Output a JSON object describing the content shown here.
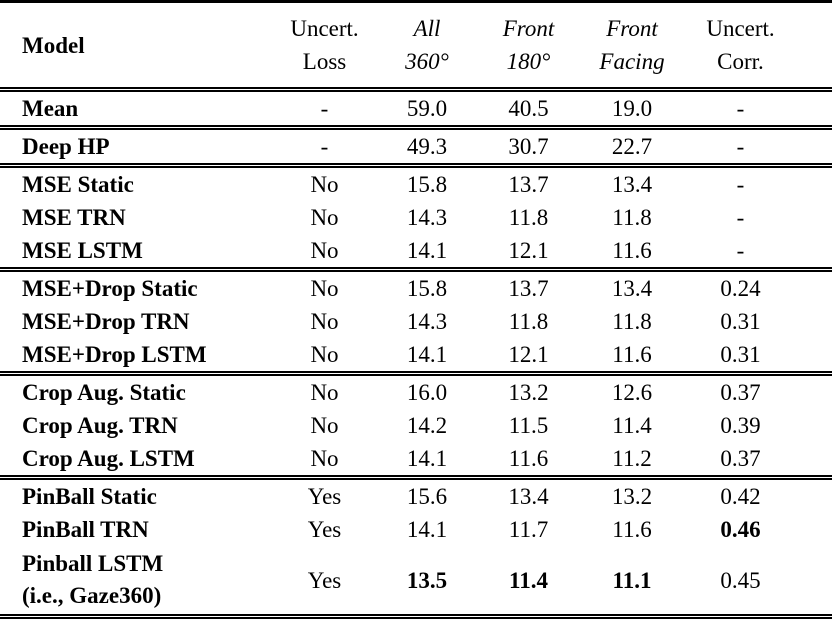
{
  "page": {
    "background_color": "#ffffff",
    "text_color": "#000000",
    "description": "Academic paper results table comparing gaze estimation models"
  },
  "table": {
    "columns": [
      {
        "id": "model",
        "lines": [
          "Model"
        ],
        "style": "bold",
        "align": "left"
      },
      {
        "id": "uncert-loss",
        "lines": [
          "Uncert.",
          "Loss"
        ],
        "style": "roman",
        "align": "center"
      },
      {
        "id": "all-360",
        "lines": [
          "All",
          "360°"
        ],
        "style": "italic",
        "align": "center"
      },
      {
        "id": "front-180",
        "lines": [
          "Front",
          "180°"
        ],
        "style": "italic",
        "align": "center"
      },
      {
        "id": "front-facing",
        "lines": [
          "Front",
          "Facing"
        ],
        "style": "italic",
        "align": "center"
      },
      {
        "id": "uncert-corr",
        "lines": [
          "Uncert.",
          "Corr."
        ],
        "style": "roman",
        "align": "center"
      }
    ],
    "groups": [
      {
        "rows": [
          {
            "cells": [
              [
                "Mean"
              ],
              "-",
              "59.0",
              "40.5",
              "19.0",
              "-"
            ],
            "bold": [
              0
            ]
          }
        ]
      },
      {
        "rows": [
          {
            "cells": [
              [
                "Deep HP"
              ],
              "-",
              "49.3",
              "30.7",
              "22.7",
              "-"
            ],
            "bold": [
              0
            ]
          }
        ]
      },
      {
        "rows": [
          {
            "cells": [
              [
                "MSE Static"
              ],
              "No",
              "15.8",
              "13.7",
              "13.4",
              "-"
            ],
            "bold": [
              0
            ]
          },
          {
            "cells": [
              [
                "MSE TRN"
              ],
              "No",
              "14.3",
              "11.8",
              "11.8",
              "-"
            ],
            "bold": [
              0
            ]
          },
          {
            "cells": [
              [
                "MSE LSTM"
              ],
              "No",
              "14.1",
              "12.1",
              "11.6",
              "-"
            ],
            "bold": [
              0
            ]
          }
        ]
      },
      {
        "rows": [
          {
            "cells": [
              [
                "MSE+Drop Static"
              ],
              "No",
              "15.8",
              "13.7",
              "13.4",
              "0.24"
            ],
            "bold": [
              0
            ]
          },
          {
            "cells": [
              [
                "MSE+Drop TRN"
              ],
              "No",
              "14.3",
              "11.8",
              "11.8",
              "0.31"
            ],
            "bold": [
              0
            ]
          },
          {
            "cells": [
              [
                "MSE+Drop LSTM"
              ],
              "No",
              "14.1",
              "12.1",
              "11.6",
              "0.31"
            ],
            "bold": [
              0
            ]
          }
        ]
      },
      {
        "rows": [
          {
            "cells": [
              [
                "Crop Aug. Static"
              ],
              "No",
              "16.0",
              "13.2",
              "12.6",
              "0.37"
            ],
            "bold": [
              0
            ]
          },
          {
            "cells": [
              [
                "Crop Aug. TRN"
              ],
              "No",
              "14.2",
              "11.5",
              "11.4",
              "0.39"
            ],
            "bold": [
              0
            ]
          },
          {
            "cells": [
              [
                "Crop Aug. LSTM"
              ],
              "No",
              "14.1",
              "11.6",
              "11.2",
              "0.37"
            ],
            "bold": [
              0
            ]
          }
        ]
      },
      {
        "rows": [
          {
            "cells": [
              [
                "PinBall Static"
              ],
              "Yes",
              "15.6",
              "13.4",
              "13.2",
              "0.42"
            ],
            "bold": [
              0
            ]
          },
          {
            "cells": [
              [
                "PinBall TRN"
              ],
              "Yes",
              "14.1",
              "11.7",
              "11.6",
              "0.46"
            ],
            "bold": [
              0,
              5
            ]
          },
          {
            "cells": [
              [
                "Pinball LSTM",
                "(i.e., Gaze360)"
              ],
              "Yes",
              "13.5",
              "11.4",
              "11.1",
              "0.45"
            ],
            "bold": [
              0,
              2,
              3,
              4
            ],
            "tall": true
          }
        ]
      }
    ]
  }
}
